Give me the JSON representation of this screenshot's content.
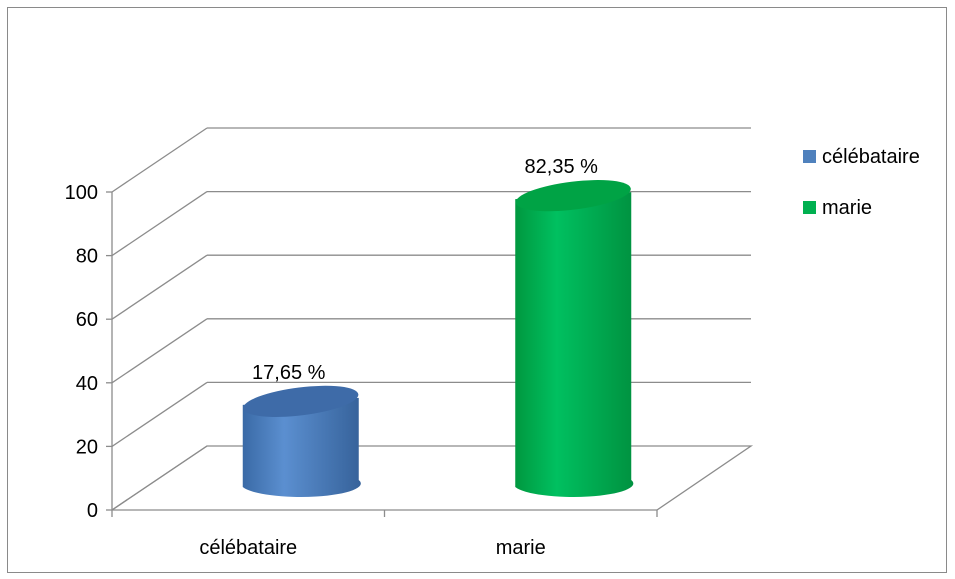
{
  "chart_data": {
    "type": "bar",
    "categories": [
      "célébataire",
      "marie"
    ],
    "values": [
      17.65,
      82.35
    ],
    "data_labels": [
      "17,65  %",
      "82,35  %"
    ],
    "colors": [
      "#4f81bd",
      "#00b050"
    ],
    "ylim": [
      0,
      100
    ],
    "yticks": [
      0,
      20,
      40,
      60,
      80,
      100
    ],
    "ytick_labels": [
      "0",
      "20",
      "40",
      "60",
      "80",
      "100"
    ],
    "grid": true,
    "bar_shape": "cylinder-3d",
    "legend": {
      "position": "right",
      "entries": [
        {
          "label": "célébataire",
          "color": "#4f81bd"
        },
        {
          "label": "marie",
          "color": "#00b050"
        }
      ]
    }
  }
}
